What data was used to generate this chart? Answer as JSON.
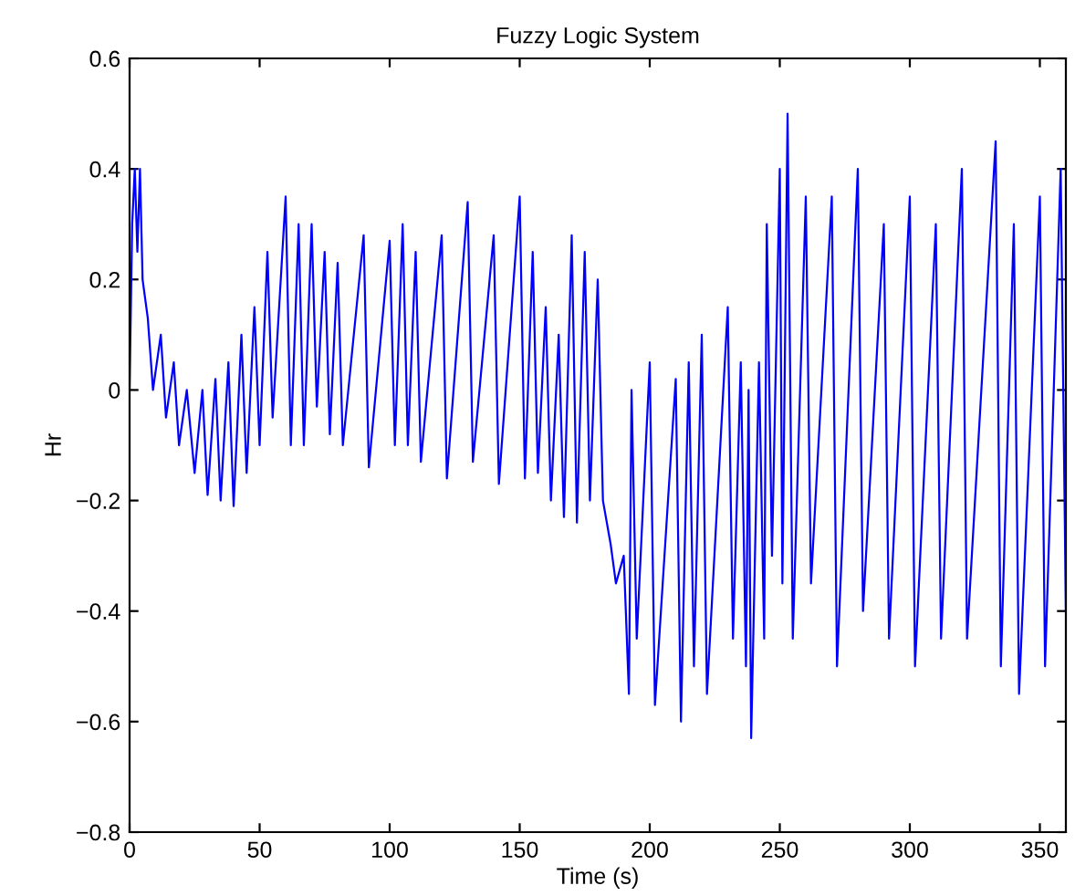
{
  "chart_data": {
    "type": "line",
    "title": "Fuzzy Logic System",
    "xlabel": "Time (s)",
    "ylabel": "Hr",
    "xlim": [
      0,
      360
    ],
    "ylim": [
      -0.8,
      0.6
    ],
    "xticks": [
      0,
      50,
      100,
      150,
      200,
      250,
      300,
      350
    ],
    "yticks": [
      {
        "value": -0.8,
        "label": "−0.8"
      },
      {
        "value": -0.6,
        "label": "−0.6"
      },
      {
        "value": -0.4,
        "label": "−0.4"
      },
      {
        "value": -0.2,
        "label": "−0.2"
      },
      0,
      0.2,
      0.4,
      0.6
    ],
    "grid": false,
    "marker": "none",
    "line_style": "solid",
    "series": [
      {
        "color": "#0000ff",
        "x": [
          0,
          1,
          2,
          3,
          4,
          5,
          7,
          9,
          12,
          14,
          17,
          19,
          22,
          25,
          28,
          30,
          33,
          35,
          38,
          40,
          43,
          45,
          48,
          50,
          53,
          55,
          60,
          62,
          65,
          67,
          70,
          72,
          75,
          77,
          80,
          82,
          90,
          92,
          100,
          102,
          105,
          107,
          110,
          112,
          120,
          122,
          130,
          132,
          140,
          142,
          150,
          152,
          155,
          157,
          160,
          162,
          165,
          167,
          170,
          172,
          175,
          177,
          180,
          182,
          185,
          187,
          190,
          192,
          193,
          195,
          200,
          202,
          210,
          212,
          215,
          217,
          220,
          222,
          230,
          232,
          235,
          237,
          238,
          239,
          242,
          244,
          245,
          247,
          250,
          251,
          253,
          255,
          260,
          262,
          270,
          272,
          280,
          282,
          290,
          292,
          300,
          302,
          310,
          312,
          320,
          322,
          333,
          335,
          340,
          342,
          350,
          352,
          358,
          360
        ],
        "values": [
          0.0,
          0.3,
          0.4,
          0.25,
          0.4,
          0.2,
          0.13,
          0.0,
          0.1,
          -0.05,
          0.05,
          -0.1,
          0.0,
          -0.15,
          0.0,
          -0.19,
          0.02,
          -0.2,
          0.05,
          -0.21,
          0.1,
          -0.15,
          0.15,
          -0.1,
          0.25,
          -0.05,
          0.35,
          -0.1,
          0.3,
          -0.1,
          0.3,
          -0.03,
          0.25,
          -0.08,
          0.23,
          -0.1,
          0.28,
          -0.14,
          0.27,
          -0.1,
          0.3,
          -0.1,
          0.25,
          -0.13,
          0.28,
          -0.16,
          0.34,
          -0.13,
          0.28,
          -0.17,
          0.35,
          -0.16,
          0.25,
          -0.15,
          0.15,
          -0.2,
          0.1,
          -0.23,
          0.28,
          -0.24,
          0.25,
          -0.2,
          0.2,
          -0.2,
          -0.28,
          -0.35,
          -0.3,
          -0.55,
          0.0,
          -0.45,
          0.05,
          -0.57,
          0.02,
          -0.6,
          0.05,
          -0.5,
          0.1,
          -0.55,
          0.15,
          -0.45,
          0.05,
          -0.5,
          0.0,
          -0.63,
          0.05,
          -0.45,
          0.3,
          -0.3,
          0.4,
          -0.35,
          0.5,
          -0.45,
          0.35,
          -0.35,
          0.35,
          -0.5,
          0.4,
          -0.4,
          0.3,
          -0.45,
          0.35,
          -0.5,
          0.3,
          -0.45,
          0.4,
          -0.45,
          0.45,
          -0.5,
          0.3,
          -0.55,
          0.35,
          -0.5,
          0.4,
          -0.4
        ]
      }
    ]
  }
}
